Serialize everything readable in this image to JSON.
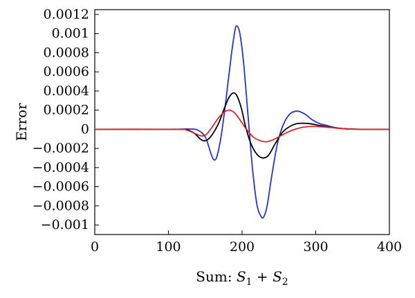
{
  "chart_data": {
    "type": "line",
    "title": "",
    "xlabel_prefix": "Sum: ",
    "xlabel_s": "S",
    "xlabel_sub1": "1",
    "xlabel_plus": " + ",
    "xlabel_sub2": "2",
    "ylabel": "Error",
    "xlim": [
      0,
      400
    ],
    "ylim": [
      -0.0011,
      0.00125
    ],
    "xticks": [
      0,
      100,
      200,
      300,
      400
    ],
    "xtick_labels": [
      "0",
      "100",
      "200",
      "300",
      "400"
    ],
    "yticks": [
      0.0012,
      0.001,
      0.0008,
      0.0006,
      0.0004,
      0.0002,
      0,
      -0.0002,
      -0.0004,
      -0.0006,
      -0.0008,
      -0.001
    ],
    "ytick_labels": [
      "0.0012",
      "0.001",
      "0.0008",
      "0.0006",
      "0.0004",
      "0.0002",
      "0",
      "−0.0002",
      "−0.0004",
      "−0.0006",
      "−0.0008",
      "−0.001"
    ],
    "grid": false,
    "legend": "none",
    "series": [
      {
        "color": "#2233cc",
        "points": [
          [
            0,
            0
          ],
          [
            100,
            0
          ],
          [
            130,
            2e-06
          ],
          [
            140,
            -1e-05
          ],
          [
            150,
            -8e-05
          ],
          [
            158,
            -0.00026
          ],
          [
            162,
            -0.00032
          ],
          [
            166,
            -0.00028
          ],
          [
            172,
            -5e-05
          ],
          [
            178,
            0.0003
          ],
          [
            185,
            0.00075
          ],
          [
            190,
            0.00102
          ],
          [
            193,
            0.00108
          ],
          [
            197,
            0.001
          ],
          [
            202,
            0.0007
          ],
          [
            208,
            0.00015
          ],
          [
            214,
            -0.0004
          ],
          [
            220,
            -0.00078
          ],
          [
            225,
            -0.0009
          ],
          [
            229,
            -0.00092
          ],
          [
            234,
            -0.0008
          ],
          [
            240,
            -0.0005
          ],
          [
            248,
            -0.00015
          ],
          [
            256,
            5e-05
          ],
          [
            265,
            0.00016
          ],
          [
            275,
            0.00019
          ],
          [
            285,
            0.00016
          ],
          [
            295,
            0.0001
          ],
          [
            305,
            6e-05
          ],
          [
            315,
            4e-05
          ],
          [
            325,
            2e-05
          ],
          [
            340,
            5e-06
          ],
          [
            360,
            0
          ],
          [
            400,
            0
          ]
        ]
      },
      {
        "color": "#000000",
        "points": [
          [
            0,
            0
          ],
          [
            110,
            0
          ],
          [
            125,
            -5e-06
          ],
          [
            135,
            -4e-05
          ],
          [
            143,
            -0.0001
          ],
          [
            148,
            -0.00012
          ],
          [
            153,
            -0.00011
          ],
          [
            160,
            -5e-05
          ],
          [
            168,
            6e-05
          ],
          [
            175,
            0.0002
          ],
          [
            182,
            0.00033
          ],
          [
            188,
            0.00038
          ],
          [
            193,
            0.00035
          ],
          [
            199,
            0.00022
          ],
          [
            205,
            2e-05
          ],
          [
            212,
            -0.00015
          ],
          [
            220,
            -0.00026
          ],
          [
            228,
            -0.0003
          ],
          [
            236,
            -0.00027
          ],
          [
            245,
            -0.00015
          ],
          [
            255,
            -3e-05
          ],
          [
            265,
            3e-05
          ],
          [
            275,
            6e-05
          ],
          [
            290,
            6e-05
          ],
          [
            305,
            4e-05
          ],
          [
            320,
            2e-05
          ],
          [
            340,
            5e-06
          ],
          [
            360,
            0
          ],
          [
            400,
            0
          ]
        ]
      },
      {
        "color": "#dd2222",
        "points": [
          [
            0,
            0
          ],
          [
            110,
            0
          ],
          [
            125,
            -1e-05
          ],
          [
            135,
            -4e-05
          ],
          [
            145,
            -7e-05
          ],
          [
            152,
            -5e-05
          ],
          [
            160,
            3e-05
          ],
          [
            168,
            0.00012
          ],
          [
            176,
            0.00018
          ],
          [
            183,
            0.0002
          ],
          [
            190,
            0.00017
          ],
          [
            197,
            0.0001
          ],
          [
            205,
            1e-05
          ],
          [
            215,
            -8e-05
          ],
          [
            225,
            -0.00012
          ],
          [
            233,
            -0.00013
          ],
          [
            242,
            -0.00011
          ],
          [
            252,
            -7e-05
          ],
          [
            262,
            -3e-05
          ],
          [
            272,
            0
          ],
          [
            282,
            2e-05
          ],
          [
            295,
            3e-05
          ],
          [
            310,
            2.5e-05
          ],
          [
            325,
            1.5e-05
          ],
          [
            340,
            5e-06
          ],
          [
            360,
            0
          ],
          [
            400,
            0
          ]
        ]
      }
    ]
  }
}
